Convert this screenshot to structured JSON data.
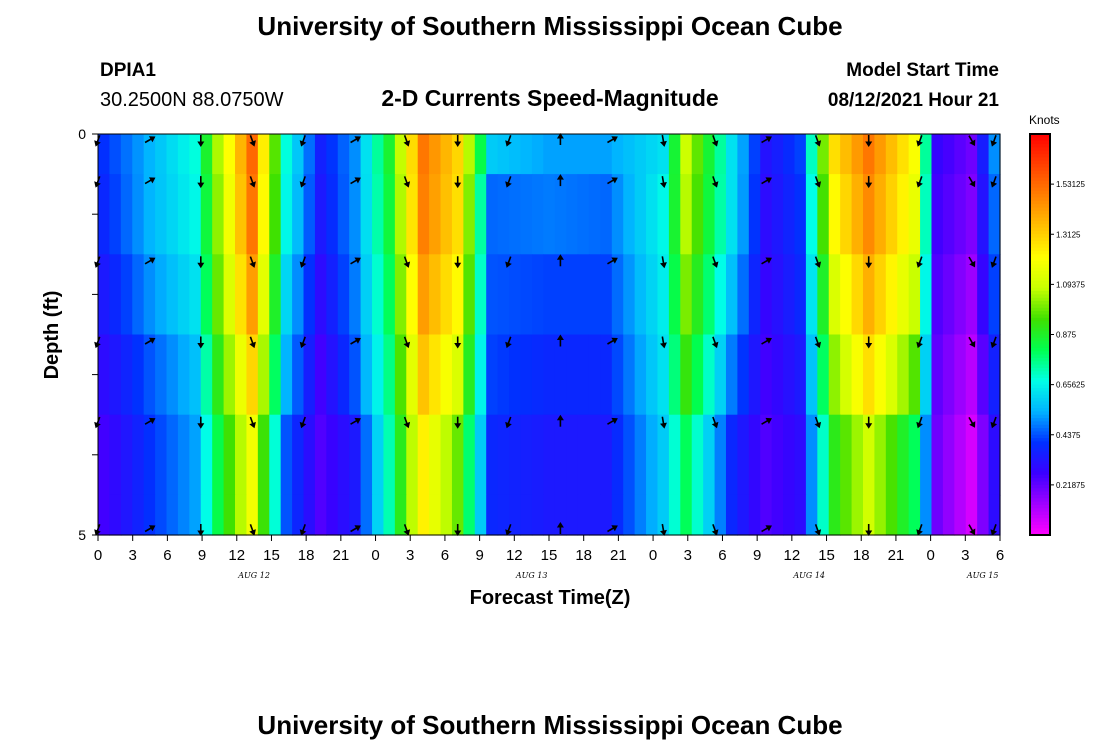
{
  "title_top": "University of Southern Mississippi Ocean Cube",
  "title_bottom": "University of Southern Mississippi Ocean Cube",
  "station": {
    "id": "DPIA1",
    "coords": "30.2500N  88.0750W"
  },
  "model": {
    "label": "Model Start Time",
    "value": "08/12/2021 Hour 21"
  },
  "colors": {
    "colormap": [
      "#ff00ff",
      "#a000ff",
      "#3a00ff",
      "#0030ff",
      "#00b4ff",
      "#00ffe6",
      "#00ff50",
      "#40e000",
      "#c8ff00",
      "#ffff00",
      "#ffc000",
      "#ff8000",
      "#ff4000",
      "#ff0000"
    ]
  },
  "chart_data": {
    "type": "heatmap",
    "title": "2-D Currents Speed-Magnitude",
    "xlabel": "Forecast Time(Z)",
    "ylabel": "Depth (ft)",
    "ylim": [
      0,
      5
    ],
    "y_ticks": [
      "0",
      "5"
    ],
    "x_ticks": [
      "0",
      "3",
      "6",
      "9",
      "12",
      "15",
      "18",
      "21",
      "0",
      "3",
      "6",
      "9",
      "12",
      "15",
      "18",
      "21",
      "0",
      "3",
      "6",
      "9",
      "12",
      "15",
      "18",
      "21",
      "0",
      "3",
      "6"
    ],
    "date_labels": [
      "AUG 12",
      "AUG 13",
      "AUG 14",
      "AUG 15"
    ],
    "date_label_tick_index": [
      4.5,
      12.5,
      20.5,
      25.5
    ],
    "time_steps": 79,
    "depth_levels": 5,
    "colorbar": {
      "unit": "Knots",
      "min": 0,
      "max": 1.75,
      "ticks": [
        "1.53125",
        "1.3125",
        "1.09375",
        "0.875",
        "0.65625",
        "0.4375",
        "0.21875"
      ]
    },
    "speed_knots_profile": {
      "hours": [
        0,
        4,
        8,
        10,
        13,
        16,
        19,
        22,
        25,
        28,
        31,
        34,
        39,
        44,
        49,
        51,
        55,
        58,
        61,
        64,
        67,
        71,
        73,
        76,
        78
      ],
      "values": [
        [
          0.4,
          0.54,
          0.68,
          1.05,
          1.53,
          0.68,
          0.36,
          0.5,
          0.86,
          1.5,
          1.3,
          0.58,
          0.52,
          0.52,
          0.62,
          1.09,
          0.62,
          0.32,
          0.42,
          1.28,
          1.5,
          1.2,
          0.28,
          0.2,
          0.5
        ],
        [
          0.38,
          0.54,
          0.66,
          1.02,
          1.5,
          0.66,
          0.34,
          0.5,
          0.84,
          1.48,
          1.28,
          0.46,
          0.48,
          0.46,
          0.66,
          1.06,
          0.62,
          0.3,
          0.4,
          1.22,
          1.46,
          1.16,
          0.26,
          0.18,
          0.46
        ],
        [
          0.34,
          0.5,
          0.62,
          0.98,
          1.42,
          0.6,
          0.3,
          0.48,
          0.8,
          1.42,
          1.22,
          0.44,
          0.42,
          0.42,
          0.64,
          1.0,
          0.56,
          0.28,
          0.38,
          1.12,
          1.38,
          1.08,
          0.24,
          0.14,
          0.42
        ],
        [
          0.3,
          0.44,
          0.56,
          0.9,
          1.3,
          0.54,
          0.26,
          0.44,
          0.76,
          1.34,
          1.12,
          0.42,
          0.38,
          0.38,
          0.62,
          0.92,
          0.48,
          0.26,
          0.34,
          1.02,
          1.28,
          0.96,
          0.22,
          0.1,
          0.36
        ],
        [
          0.26,
          0.4,
          0.52,
          0.82,
          1.18,
          0.44,
          0.24,
          0.34,
          0.72,
          1.24,
          0.98,
          0.38,
          0.34,
          0.34,
          0.58,
          0.8,
          0.38,
          0.24,
          0.3,
          0.9,
          1.1,
          0.8,
          0.2,
          0.06,
          0.3
        ]
      ]
    },
    "vector_times": [
      0,
      4.5,
      9,
      13.5,
      18,
      22.5,
      27,
      31.5,
      36,
      40.5,
      45,
      49.5,
      54,
      58.5,
      63,
      67.5,
      72,
      76.5,
      78.5
    ],
    "vector_directions_deg": [
      200,
      60,
      180,
      160,
      200,
      60,
      160,
      180,
      200,
      0,
      60,
      170,
      160,
      60,
      160,
      180,
      200,
      150,
      200
    ]
  }
}
